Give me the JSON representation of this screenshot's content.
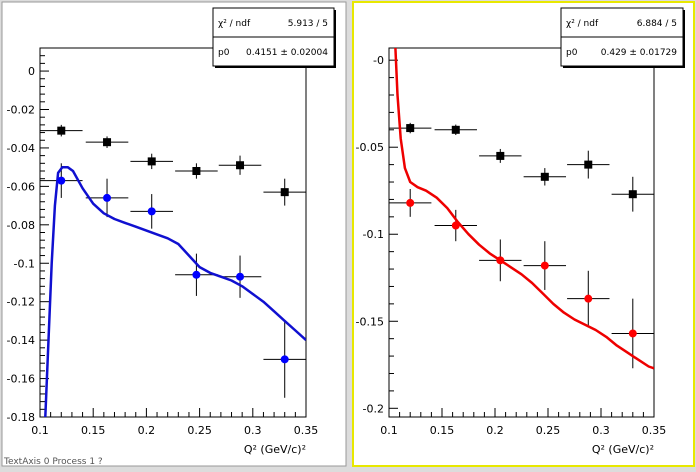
{
  "status_bar": "TextAxis 0 Process 1 ?",
  "chart_data": [
    {
      "type": "scatter",
      "active": false,
      "xlabel": "Q² (GeV/c)²",
      "xlim": [
        0.1,
        0.35
      ],
      "ylim": [
        -0.18,
        0.012
      ],
      "xticks": [
        0.1,
        0.15,
        0.2,
        0.25,
        0.3,
        0.35
      ],
      "xtick_labels": [
        "0.1",
        "0.15",
        "0.2",
        "0.25",
        "0.3",
        "0.35"
      ],
      "yticks": [
        0,
        -0.02,
        -0.04,
        -0.06,
        -0.08,
        -0.1,
        -0.12,
        -0.14,
        -0.16,
        -0.18
      ],
      "ytick_labels": [
        "0",
        "-0.02",
        "-0.04",
        "-0.06",
        "-0.08",
        "-0.1",
        "-0.12",
        "-0.14",
        "-0.16",
        "-0.18"
      ],
      "stats": [
        {
          "label": "χ² / ndf",
          "value": "5.913 / 5"
        },
        {
          "label": "p0",
          "value": "0.4151 ± 0.02004"
        }
      ],
      "series": [
        {
          "color": "#000000",
          "marker": "square",
          "points": [
            {
              "x": 0.12,
              "y": -0.031,
              "xerr": 0.02,
              "yerr": 0.003
            },
            {
              "x": 0.163,
              "y": -0.037,
              "xerr": 0.02,
              "yerr": 0.003
            },
            {
              "x": 0.205,
              "y": -0.047,
              "xerr": 0.02,
              "yerr": 0.004
            },
            {
              "x": 0.247,
              "y": -0.052,
              "xerr": 0.02,
              "yerr": 0.004
            },
            {
              "x": 0.288,
              "y": -0.049,
              "xerr": 0.02,
              "yerr": 0.005
            },
            {
              "x": 0.33,
              "y": -0.063,
              "xerr": 0.02,
              "yerr": 0.007
            }
          ]
        },
        {
          "color": "#0000ff",
          "marker": "circle",
          "points": [
            {
              "x": 0.12,
              "y": -0.057,
              "xerr": 0.02,
              "yerr": 0.009
            },
            {
              "x": 0.163,
              "y": -0.066,
              "xerr": 0.02,
              "yerr": 0.01
            },
            {
              "x": 0.205,
              "y": -0.073,
              "xerr": 0.02,
              "yerr": 0.009
            },
            {
              "x": 0.247,
              "y": -0.106,
              "xerr": 0.02,
              "yerr": 0.011
            },
            {
              "x": 0.288,
              "y": -0.107,
              "xerr": 0.02,
              "yerr": 0.011
            },
            {
              "x": 0.33,
              "y": -0.15,
              "xerr": 0.02,
              "yerr": 0.02
            }
          ]
        }
      ],
      "curve": {
        "color": "#1010d0",
        "points": [
          [
            0.105,
            -0.18
          ],
          [
            0.108,
            -0.14
          ],
          [
            0.111,
            -0.1
          ],
          [
            0.114,
            -0.07
          ],
          [
            0.117,
            -0.053
          ],
          [
            0.121,
            -0.05
          ],
          [
            0.126,
            -0.05
          ],
          [
            0.131,
            -0.052
          ],
          [
            0.14,
            -0.061
          ],
          [
            0.15,
            -0.069
          ],
          [
            0.16,
            -0.074
          ],
          [
            0.17,
            -0.077
          ],
          [
            0.18,
            -0.079
          ],
          [
            0.19,
            -0.081
          ],
          [
            0.2,
            -0.083
          ],
          [
            0.21,
            -0.085
          ],
          [
            0.22,
            -0.087
          ],
          [
            0.23,
            -0.09
          ],
          [
            0.24,
            -0.096
          ],
          [
            0.25,
            -0.102
          ],
          [
            0.26,
            -0.105
          ],
          [
            0.27,
            -0.107
          ],
          [
            0.28,
            -0.109
          ],
          [
            0.29,
            -0.112
          ],
          [
            0.3,
            -0.116
          ],
          [
            0.31,
            -0.12
          ],
          [
            0.32,
            -0.125
          ],
          [
            0.33,
            -0.13
          ],
          [
            0.34,
            -0.135
          ],
          [
            0.35,
            -0.14
          ]
        ]
      }
    },
    {
      "type": "scatter",
      "active": true,
      "xlabel": "Q² (GeV/c)²",
      "xlim": [
        0.1,
        0.35
      ],
      "ylim": [
        -0.205,
        0.007
      ],
      "xticks": [
        0.1,
        0.15,
        0.2,
        0.25,
        0.3,
        0.35
      ],
      "xtick_labels": [
        "0.1",
        "0.15",
        "0.2",
        "0.25",
        "0.3",
        "0.35"
      ],
      "yticks": [
        0,
        -0.05,
        -0.1,
        -0.15,
        -0.2
      ],
      "ytick_labels": [
        "-0",
        "-0.05",
        "-0.1",
        "-0.15",
        "-0.2"
      ],
      "stats": [
        {
          "label": "χ² / ndf",
          "value": "6.884 / 5"
        },
        {
          "label": "p0",
          "value": "0.429 ± 0.01729"
        }
      ],
      "series": [
        {
          "color": "#000000",
          "marker": "square",
          "points": [
            {
              "x": 0.12,
              "y": -0.039,
              "xerr": 0.02,
              "yerr": 0.003
            },
            {
              "x": 0.163,
              "y": -0.04,
              "xerr": 0.02,
              "yerr": 0.003
            },
            {
              "x": 0.205,
              "y": -0.055,
              "xerr": 0.02,
              "yerr": 0.004
            },
            {
              "x": 0.247,
              "y": -0.067,
              "xerr": 0.02,
              "yerr": 0.005
            },
            {
              "x": 0.288,
              "y": -0.06,
              "xerr": 0.02,
              "yerr": 0.008
            },
            {
              "x": 0.33,
              "y": -0.077,
              "xerr": 0.02,
              "yerr": 0.01
            }
          ]
        },
        {
          "color": "#ff0000",
          "marker": "circle",
          "points": [
            {
              "x": 0.12,
              "y": -0.082,
              "xerr": 0.02,
              "yerr": 0.008
            },
            {
              "x": 0.163,
              "y": -0.095,
              "xerr": 0.02,
              "yerr": 0.009
            },
            {
              "x": 0.205,
              "y": -0.115,
              "xerr": 0.02,
              "yerr": 0.012
            },
            {
              "x": 0.247,
              "y": -0.118,
              "xerr": 0.02,
              "yerr": 0.014
            },
            {
              "x": 0.288,
              "y": -0.137,
              "xerr": 0.02,
              "yerr": 0.016
            },
            {
              "x": 0.33,
              "y": -0.157,
              "xerr": 0.02,
              "yerr": 0.02
            }
          ]
        }
      ],
      "curve": {
        "color": "#ee0000",
        "points": [
          [
            0.106,
            0.007
          ],
          [
            0.108,
            -0.02
          ],
          [
            0.111,
            -0.045
          ],
          [
            0.115,
            -0.062
          ],
          [
            0.12,
            -0.07
          ],
          [
            0.127,
            -0.073
          ],
          [
            0.135,
            -0.075
          ],
          [
            0.145,
            -0.079
          ],
          [
            0.155,
            -0.085
          ],
          [
            0.165,
            -0.093
          ],
          [
            0.175,
            -0.1
          ],
          [
            0.185,
            -0.106
          ],
          [
            0.195,
            -0.111
          ],
          [
            0.205,
            -0.115
          ],
          [
            0.215,
            -0.119
          ],
          [
            0.225,
            -0.123
          ],
          [
            0.235,
            -0.128
          ],
          [
            0.245,
            -0.134
          ],
          [
            0.255,
            -0.14
          ],
          [
            0.265,
            -0.145
          ],
          [
            0.275,
            -0.149
          ],
          [
            0.285,
            -0.152
          ],
          [
            0.295,
            -0.155
          ],
          [
            0.305,
            -0.159
          ],
          [
            0.315,
            -0.164
          ],
          [
            0.325,
            -0.168
          ],
          [
            0.335,
            -0.172
          ],
          [
            0.345,
            -0.176
          ],
          [
            0.35,
            -0.177
          ]
        ]
      }
    }
  ]
}
